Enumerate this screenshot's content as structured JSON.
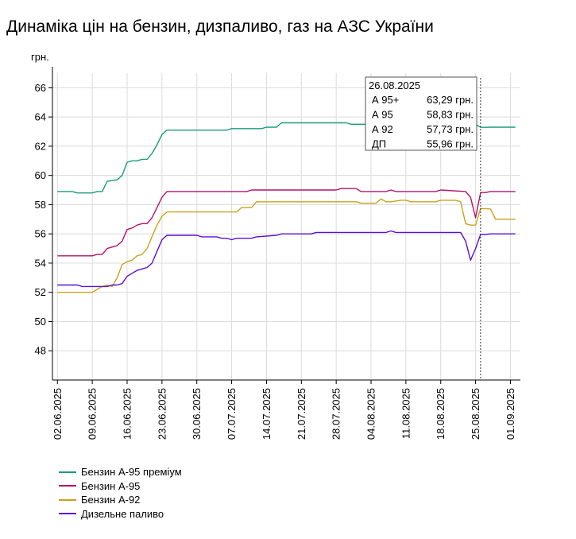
{
  "title": "Динаміка цін на бензин, дизпаливо, газ на АЗС України",
  "chart_data": {
    "type": "line",
    "title": "Динаміка цін на бензин, дизпаливо, газ на АЗС України",
    "ylabel": "грн.",
    "xlabel": "",
    "ylim": [
      46,
      67
    ],
    "y_ticks": [
      48,
      50,
      52,
      54,
      56,
      58,
      60,
      62,
      64,
      66
    ],
    "x_range": [
      "2025-06-01",
      "2025-09-03"
    ],
    "x_tick_labels": [
      "02.06.2025",
      "09.06.2025",
      "16.06.2025",
      "23.06.2025",
      "30.06.2025",
      "07.07.2025",
      "14.07.2025",
      "21.07.2025",
      "28.07.2025",
      "04.08.2025",
      "11.08.2025",
      "18.08.2025",
      "25.08.2025",
      "01.09.2025"
    ],
    "x_tick_dates": [
      "2025-06-02",
      "2025-06-09",
      "2025-06-16",
      "2025-06-23",
      "2025-06-30",
      "2025-07-07",
      "2025-07-14",
      "2025-07-21",
      "2025-07-28",
      "2025-08-04",
      "2025-08-11",
      "2025-08-18",
      "2025-08-25",
      "2025-09-01"
    ],
    "grid": true,
    "legend_position": "bottom-left",
    "series": [
      {
        "name": "Бензин А-95 преміум",
        "color": "#1a9b82",
        "x": [
          "2025-06-02",
          "2025-06-05",
          "2025-06-06",
          "2025-06-09",
          "2025-06-10",
          "2025-06-11",
          "2025-06-12",
          "2025-06-14",
          "2025-06-15",
          "2025-06-16",
          "2025-06-17",
          "2025-06-18",
          "2025-06-19",
          "2025-06-20",
          "2025-06-21",
          "2025-06-22",
          "2025-06-23",
          "2025-06-24",
          "2025-07-06",
          "2025-07-07",
          "2025-07-13",
          "2025-07-14",
          "2025-07-16",
          "2025-07-17",
          "2025-07-30",
          "2025-07-31",
          "2025-08-25",
          "2025-08-26",
          "2025-08-27",
          "2025-08-28",
          "2025-09-02"
        ],
        "y": [
          58.9,
          58.9,
          58.8,
          58.8,
          58.9,
          58.9,
          59.6,
          59.7,
          60.0,
          60.9,
          61.0,
          61.0,
          61.1,
          61.1,
          61.5,
          62.1,
          62.8,
          63.1,
          63.1,
          63.2,
          63.2,
          63.3,
          63.3,
          63.6,
          63.6,
          63.5,
          63.5,
          63.29,
          63.29,
          63.3,
          63.3
        ]
      },
      {
        "name": "Бензин А-95",
        "color": "#b5126b",
        "x": [
          "2025-06-02",
          "2025-06-09",
          "2025-06-10",
          "2025-06-11",
          "2025-06-12",
          "2025-06-14",
          "2025-06-15",
          "2025-06-16",
          "2025-06-17",
          "2025-06-18",
          "2025-06-19",
          "2025-06-20",
          "2025-06-21",
          "2025-06-22",
          "2025-06-23",
          "2025-06-24",
          "2025-07-10",
          "2025-07-11",
          "2025-07-28",
          "2025-07-29",
          "2025-08-01",
          "2025-08-02",
          "2025-08-07",
          "2025-08-08",
          "2025-08-09",
          "2025-08-17",
          "2025-08-18",
          "2025-08-23",
          "2025-08-24",
          "2025-08-25",
          "2025-08-26",
          "2025-08-27",
          "2025-08-28",
          "2025-09-02"
        ],
        "y": [
          54.5,
          54.5,
          54.6,
          54.6,
          55.0,
          55.2,
          55.5,
          56.3,
          56.4,
          56.6,
          56.7,
          56.7,
          57.1,
          57.8,
          58.5,
          58.9,
          58.9,
          59.0,
          59.0,
          59.1,
          59.1,
          58.9,
          58.9,
          59.0,
          58.9,
          58.9,
          59.0,
          58.9,
          58.5,
          57.1,
          58.83,
          58.83,
          58.9,
          58.9
        ]
      },
      {
        "name": "Бензин А-92",
        "color": "#c9a21c",
        "x": [
          "2025-06-02",
          "2025-06-09",
          "2025-06-10",
          "2025-06-11",
          "2025-06-12",
          "2025-06-13",
          "2025-06-14",
          "2025-06-15",
          "2025-06-16",
          "2025-06-17",
          "2025-06-18",
          "2025-06-19",
          "2025-06-20",
          "2025-06-21",
          "2025-06-22",
          "2025-06-23",
          "2025-06-24",
          "2025-07-03",
          "2025-07-04",
          "2025-07-08",
          "2025-07-09",
          "2025-07-11",
          "2025-07-12",
          "2025-08-01",
          "2025-08-02",
          "2025-08-05",
          "2025-08-06",
          "2025-08-07",
          "2025-08-08",
          "2025-08-10",
          "2025-08-11",
          "2025-08-12",
          "2025-08-17",
          "2025-08-18",
          "2025-08-21",
          "2025-08-22",
          "2025-08-23",
          "2025-08-24",
          "2025-08-25",
          "2025-08-26",
          "2025-08-27",
          "2025-08-28",
          "2025-08-29",
          "2025-09-02"
        ],
        "y": [
          52.0,
          52.0,
          52.2,
          52.4,
          52.5,
          52.4,
          53.0,
          53.9,
          54.1,
          54.2,
          54.5,
          54.6,
          55.0,
          55.8,
          56.6,
          57.2,
          57.5,
          57.5,
          57.5,
          57.5,
          57.8,
          57.8,
          58.2,
          58.2,
          58.1,
          58.1,
          58.4,
          58.2,
          58.2,
          58.3,
          58.3,
          58.2,
          58.2,
          58.3,
          58.3,
          58.2,
          56.7,
          56.6,
          56.6,
          57.73,
          57.73,
          57.7,
          57.0,
          57.0
        ]
      },
      {
        "name": "Дизельне паливо",
        "color": "#5b0ed6",
        "x": [
          "2025-06-02",
          "2025-06-06",
          "2025-06-07",
          "2025-06-12",
          "2025-06-13",
          "2025-06-14",
          "2025-06-15",
          "2025-06-16",
          "2025-06-17",
          "2025-06-18",
          "2025-06-19",
          "2025-06-20",
          "2025-06-21",
          "2025-06-22",
          "2025-06-23",
          "2025-06-24",
          "2025-06-30",
          "2025-07-01",
          "2025-07-04",
          "2025-07-05",
          "2025-07-06",
          "2025-07-07",
          "2025-07-08",
          "2025-07-09",
          "2025-07-11",
          "2025-07-12",
          "2025-07-16",
          "2025-07-17",
          "2025-07-23",
          "2025-07-24",
          "2025-08-07",
          "2025-08-08",
          "2025-08-09",
          "2025-08-22",
          "2025-08-23",
          "2025-08-24",
          "2025-08-25",
          "2025-08-26",
          "2025-08-27",
          "2025-08-28",
          "2025-09-02"
        ],
        "y": [
          52.5,
          52.5,
          52.4,
          52.4,
          52.5,
          52.5,
          52.6,
          53.1,
          53.3,
          53.5,
          53.6,
          53.7,
          54.0,
          54.8,
          55.6,
          55.9,
          55.9,
          55.8,
          55.8,
          55.7,
          55.7,
          55.6,
          55.7,
          55.7,
          55.7,
          55.8,
          55.9,
          56.0,
          56.0,
          56.1,
          56.1,
          56.2,
          56.1,
          56.1,
          55.5,
          54.2,
          55.0,
          55.96,
          55.96,
          56.0,
          56.0
        ]
      }
    ],
    "marker_line_date": "2025-08-26",
    "tooltip": {
      "date": "26.08.2025",
      "rows": [
        {
          "label": "А 95+",
          "value": "63,29 грн."
        },
        {
          "label": "А 95",
          "value": "58,83 грн."
        },
        {
          "label": "А 92",
          "value": "57,73 грн."
        },
        {
          "label": "ДП",
          "value": "55,96 грн."
        }
      ]
    }
  }
}
